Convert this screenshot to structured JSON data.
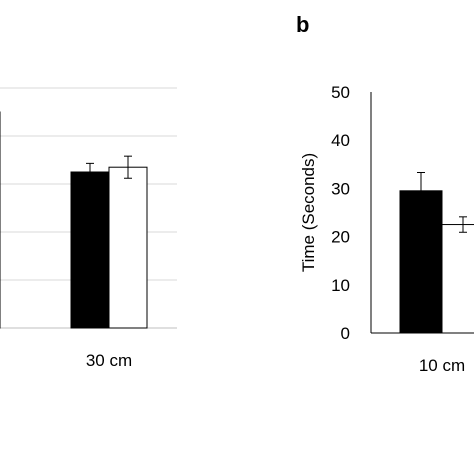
{
  "chart_data": [
    {
      "panel": "",
      "type": "bar",
      "categories": [
        "",
        "30 cm"
      ],
      "series": [
        {
          "color": "#000000",
          "values": [
            null,
            32.5
          ],
          "errors": [
            null,
            1.8
          ]
        },
        {
          "color": "#ffffff",
          "values": [
            45,
            33.5
          ],
          "errors": [
            null,
            2.3
          ]
        }
      ],
      "ylim": [
        0,
        50
      ],
      "grid": true,
      "ylabel": "",
      "yticks_visible": false
    },
    {
      "panel": "b",
      "type": "bar",
      "categories": [
        "10 cm"
      ],
      "series": [
        {
          "color": "#000000",
          "values": [
            29.5
          ],
          "errors": [
            3.8
          ]
        },
        {
          "color": "#ffffff",
          "values": [
            22.5
          ],
          "errors": [
            1.6
          ]
        }
      ],
      "ylim": [
        0,
        50
      ],
      "yticks": [
        "0",
        "10",
        "20",
        "30",
        "40",
        "50"
      ],
      "grid": false,
      "ylabel": "Time (Seconds)"
    }
  ]
}
